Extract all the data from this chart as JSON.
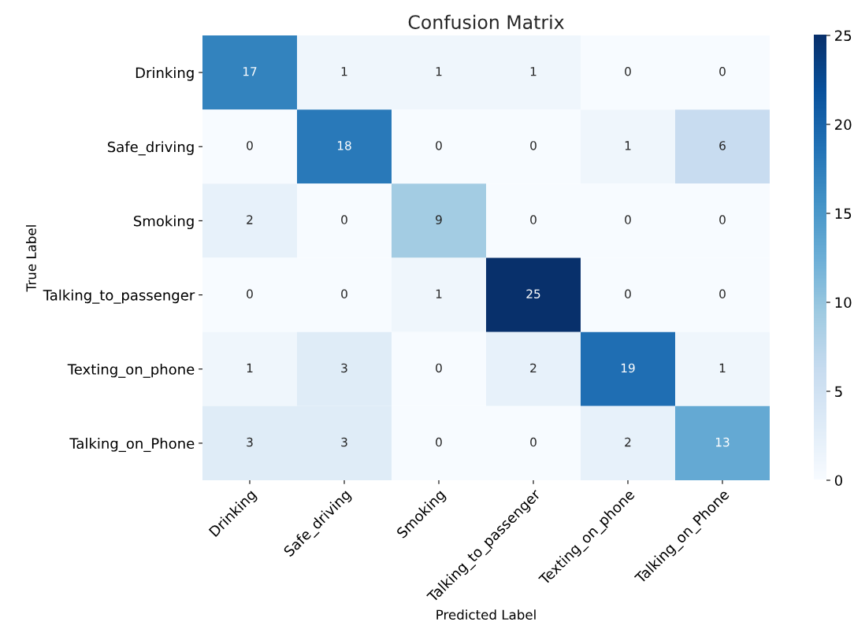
{
  "chart_data": {
    "type": "heatmap",
    "title": "Confusion Matrix",
    "xlabel": "Predicted Label",
    "ylabel": "True Label",
    "categories": [
      "Drinking",
      "Safe_driving",
      "Smoking",
      "Talking_to_passenger",
      "Texting_on_phone",
      "Talking_on_Phone"
    ],
    "y_categories": [
      "Drinking",
      "Safe_driving",
      "Smoking",
      "Talking_to_passenger",
      "Texting_on_phone",
      "Talking_on_Phone"
    ],
    "cells": [
      [
        17,
        1,
        1,
        1,
        0,
        0
      ],
      [
        0,
        18,
        0,
        0,
        1,
        6
      ],
      [
        2,
        0,
        9,
        0,
        0,
        0
      ],
      [
        0,
        0,
        1,
        25,
        0,
        0
      ],
      [
        1,
        3,
        0,
        2,
        19,
        1
      ],
      [
        3,
        3,
        0,
        0,
        2,
        13
      ]
    ],
    "clim": [
      0,
      25
    ],
    "cticks": [
      0,
      5,
      10,
      15,
      20,
      25
    ],
    "data_labels": true
  }
}
